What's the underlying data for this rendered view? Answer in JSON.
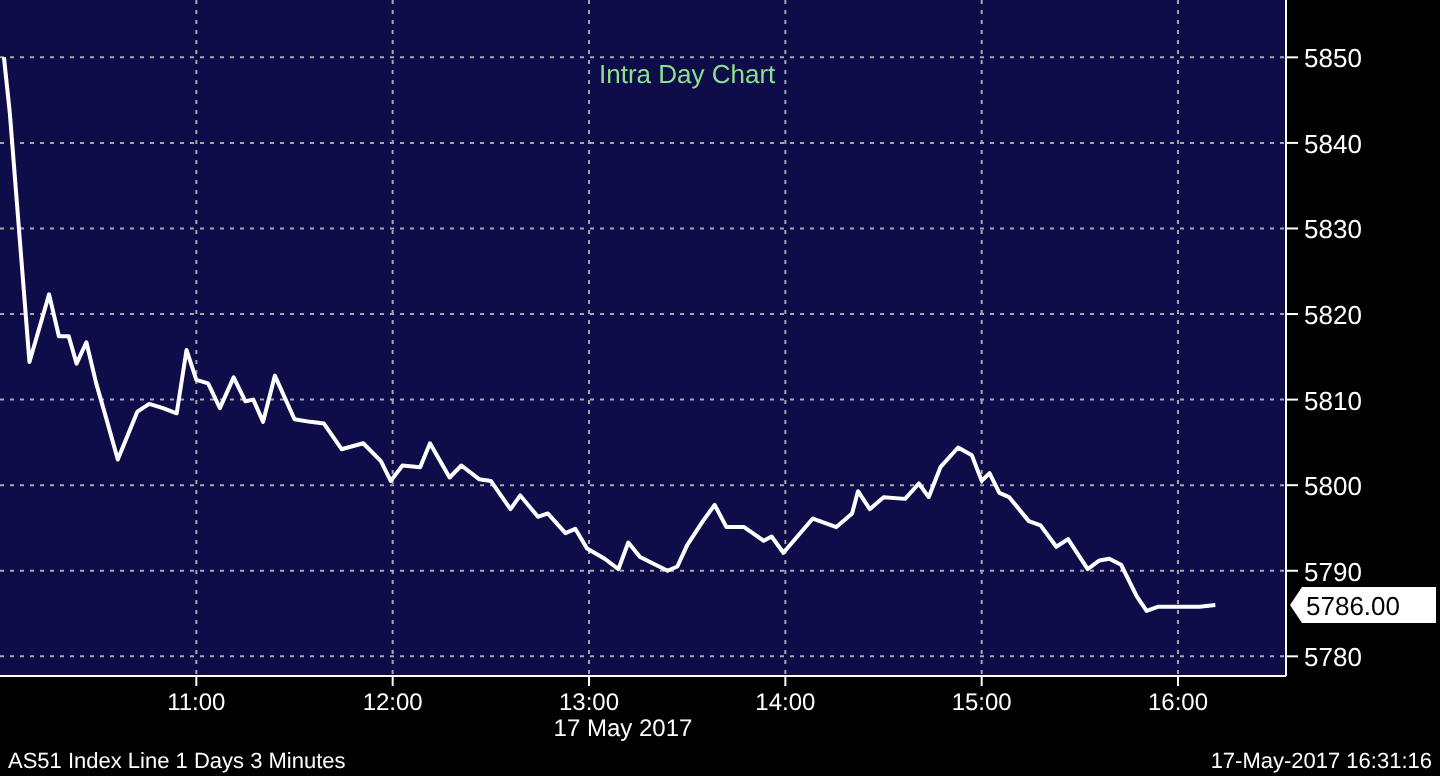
{
  "chart_data": {
    "type": "line",
    "title": "Intra Day Chart",
    "xlabel": "17 May 2017",
    "x": [
      10.02,
      10.05,
      10.15,
      10.25,
      10.3,
      10.35,
      10.39,
      10.44,
      10.49,
      10.54,
      10.6,
      10.7,
      10.76,
      10.83,
      10.9,
      10.95,
      11.0,
      11.06,
      11.12,
      11.19,
      11.25,
      11.29,
      11.34,
      11.4,
      11.5,
      11.58,
      11.65,
      11.74,
      11.85,
      11.94,
      11.99,
      12.05,
      12.14,
      12.19,
      12.29,
      12.35,
      12.44,
      12.5,
      12.6,
      12.65,
      12.74,
      12.79,
      12.88,
      12.93,
      12.99,
      13.08,
      13.15,
      13.2,
      13.26,
      13.4,
      13.45,
      13.5,
      13.58,
      13.64,
      13.7,
      13.79,
      13.89,
      13.93,
      13.99,
      14.14,
      14.26,
      14.34,
      14.37,
      14.43,
      14.5,
      14.61,
      14.68,
      14.73,
      14.79,
      14.88,
      14.95,
      15.0,
      15.04,
      15.09,
      15.14,
      15.24,
      15.3,
      15.38,
      15.44,
      15.54,
      15.6,
      15.65,
      15.71,
      15.79,
      15.84,
      15.9,
      16.11,
      16.19
    ],
    "series": [
      {
        "color": "#ffffff",
        "values": [
          5850,
          5843.5,
          5814.4,
          5822.3,
          5817.4,
          5817.4,
          5814.2,
          5816.7,
          5811.9,
          5807.9,
          5803,
          5808.6,
          5809.5,
          5809,
          5808.4,
          5815.8,
          5812.3,
          5811.9,
          5809,
          5812.6,
          5809.8,
          5810,
          5807.4,
          5812.8,
          5807.7,
          5807.4,
          5807.2,
          5804.2,
          5804.9,
          5802.8,
          5800.5,
          5802.3,
          5802.1,
          5804.9,
          5800.9,
          5802.3,
          5800.7,
          5800.5,
          5797.2,
          5798.8,
          5796.3,
          5796.7,
          5794.4,
          5794.9,
          5792.6,
          5791.4,
          5790.2,
          5793.3,
          5791.6,
          5790,
          5790.5,
          5793,
          5795.8,
          5797.7,
          5795.1,
          5795.1,
          5793.5,
          5794,
          5792.1,
          5796.1,
          5795.1,
          5796.7,
          5799.3,
          5797.2,
          5798.6,
          5798.4,
          5800.2,
          5798.6,
          5802.1,
          5804.4,
          5803.5,
          5800.5,
          5801.4,
          5799.1,
          5798.6,
          5795.8,
          5795.3,
          5792.8,
          5793.7,
          5790.2,
          5791.2,
          5791.4,
          5790.7,
          5787,
          5785.3,
          5785.8,
          5785.8,
          5786
        ]
      }
    ],
    "xlim": [
      10,
      16.55
    ],
    "xticks": [
      {
        "value": 11,
        "label": "11:00"
      },
      {
        "value": 12,
        "label": "12:00"
      },
      {
        "value": 13,
        "label": "13:00"
      },
      {
        "value": 14,
        "label": "14:00"
      },
      {
        "value": 15,
        "label": "15:00"
      },
      {
        "value": 16,
        "label": "16:00"
      }
    ],
    "ylim": [
      5777.7,
      5856.7
    ],
    "yticks": [
      5780,
      5790,
      5800,
      5810,
      5820,
      5830,
      5840,
      5850
    ],
    "grid": true,
    "line_style": "solid",
    "marker": "none",
    "annotations": [
      "5786.00",
      "AS51 Index Line 1 Days 3 Minutes",
      "17-May-2017 16:31:16"
    ]
  }
}
